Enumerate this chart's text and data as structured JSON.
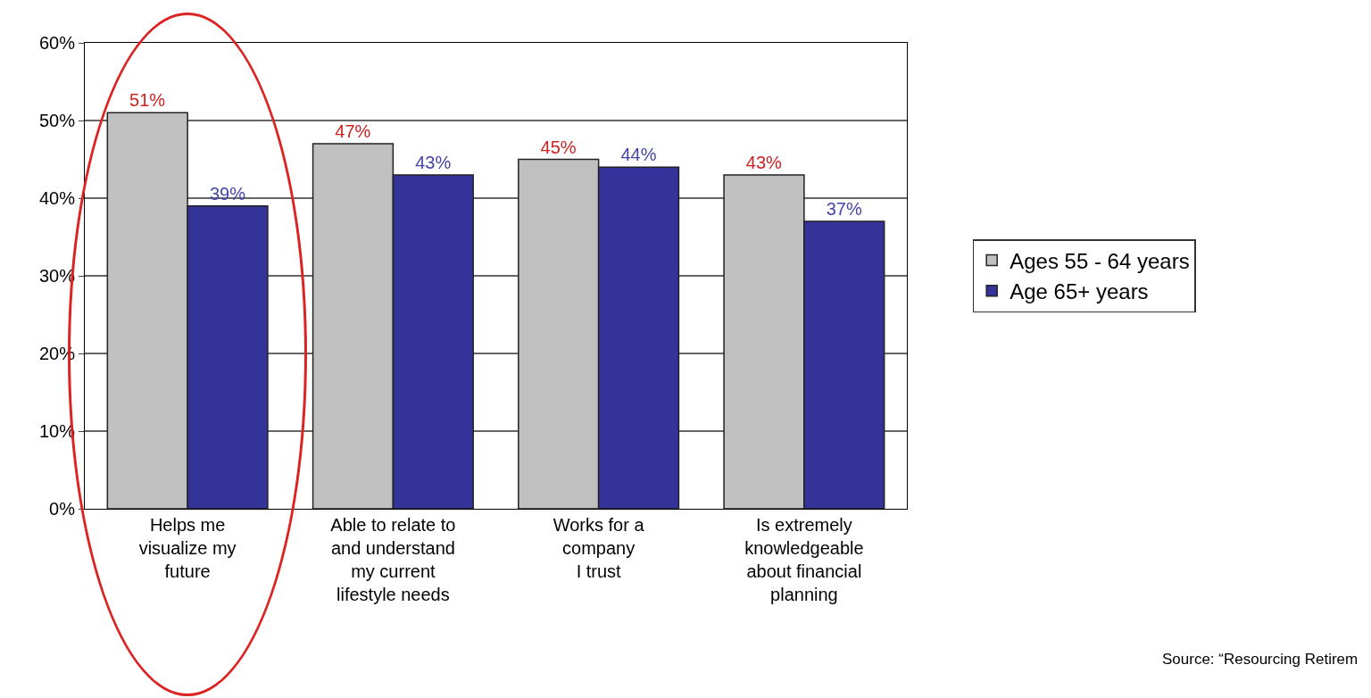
{
  "chart_data": {
    "type": "bar",
    "categories": [
      "Helps me\nvisualize my\nfuture",
      "Able to relate to\nand understand\nmy current\nlifestyle needs",
      "Works for a\ncompany\nI trust",
      "Is extremely\nknowledgeable\nabout financial\nplanning"
    ],
    "series": [
      {
        "name": "Ages 55 - 64 years",
        "color": "#c0c0c0",
        "values": [
          51,
          47,
          45,
          43
        ],
        "value_labels": [
          "51%",
          "47%",
          "45%",
          "43%"
        ]
      },
      {
        "name": "Age 65+ years",
        "color": "#333399",
        "values": [
          39,
          43,
          44,
          37
        ],
        "value_labels": [
          "39%",
          "43%",
          "44%",
          "37%"
        ]
      }
    ],
    "ylim": [
      0,
      60
    ],
    "yticks": [
      {
        "value": 0,
        "label": "0%"
      },
      {
        "value": 10,
        "label": "10%"
      },
      {
        "value": 20,
        "label": "20%"
      },
      {
        "value": 30,
        "label": "30%"
      },
      {
        "value": 40,
        "label": "40%"
      },
      {
        "value": 50,
        "label": "50%"
      },
      {
        "value": 60,
        "label": "60%"
      }
    ],
    "grid": "y",
    "legend": "right",
    "annotations": [
      "Source: “Resourcing Retirem"
    ]
  }
}
